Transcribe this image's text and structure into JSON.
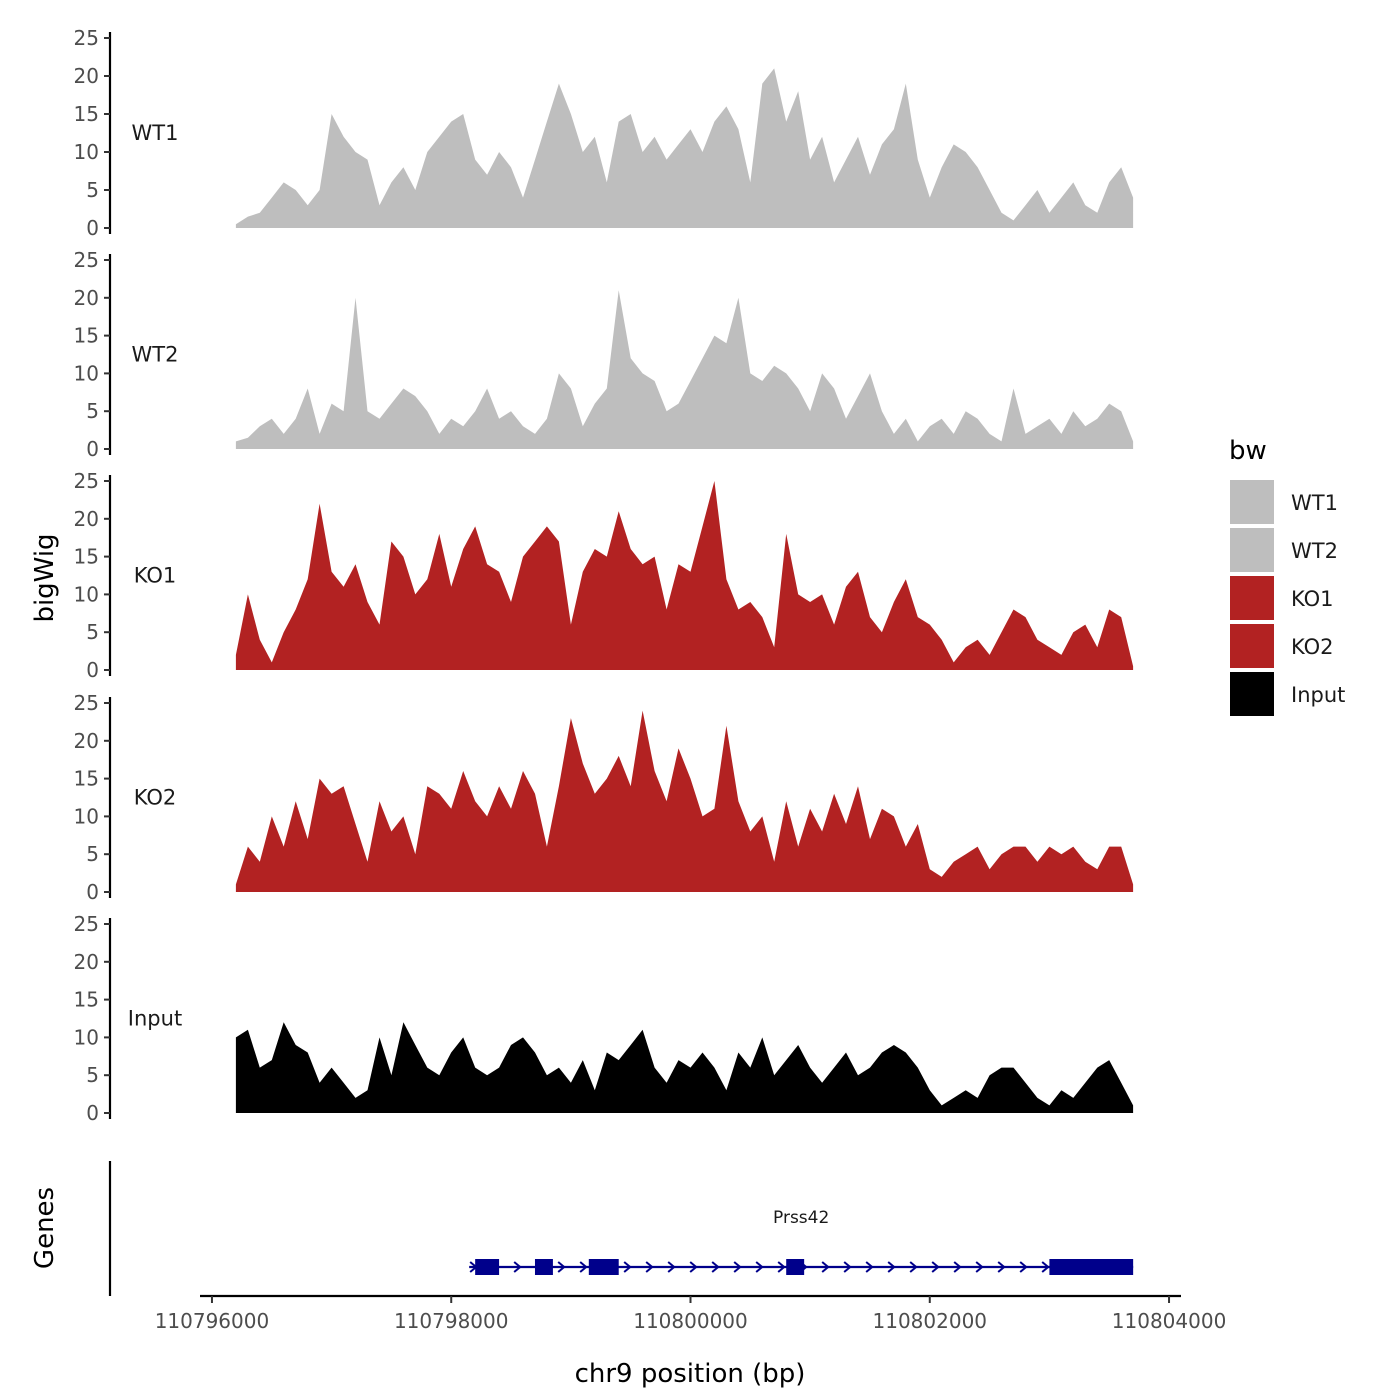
{
  "chart_data": {
    "type": "area",
    "title": "",
    "ylabel": "bigWig",
    "xlabel": "chr9 position (bp)",
    "gene_panel_label": "Genes",
    "xlim": [
      110795900,
      110804100
    ],
    "ylim": [
      0,
      25
    ],
    "y_ticks": [
      0,
      5,
      10,
      15,
      20,
      25
    ],
    "y_tick_labels": [
      "0",
      "5",
      "10",
      "15",
      "20",
      "25"
    ],
    "x_ticks": [
      110796000,
      110798000,
      110800000,
      110802000,
      110804000
    ],
    "x_tick_labels": [
      "110796000",
      "110798000",
      "110800000",
      "110802000",
      "110804000"
    ],
    "legend": {
      "title": "bw",
      "placement": "right",
      "items": [
        {
          "label": "WT1",
          "color": "#bebebe"
        },
        {
          "label": "WT2",
          "color": "#bebebe"
        },
        {
          "label": "KO1",
          "color": "#b22222"
        },
        {
          "label": "KO2",
          "color": "#b22222"
        },
        {
          "label": "Input",
          "color": "#000000"
        }
      ]
    },
    "series": [
      {
        "name": "WT1",
        "color": "#bebebe",
        "x": [
          110796200,
          110796300,
          110796400,
          110796500,
          110796600,
          110796700,
          110796800,
          110796900,
          110797000,
          110797100,
          110797200,
          110797300,
          110797400,
          110797500,
          110797600,
          110797700,
          110797800,
          110797900,
          110798000,
          110798100,
          110798200,
          110798300,
          110798400,
          110798500,
          110798600,
          110798700,
          110798800,
          110798900,
          110799000,
          110799100,
          110799200,
          110799300,
          110799400,
          110799500,
          110799600,
          110799700,
          110799800,
          110799900,
          110800000,
          110800100,
          110800200,
          110800300,
          110800400,
          110800500,
          110800600,
          110800700,
          110800800,
          110800900,
          110801000,
          110801100,
          110801200,
          110801300,
          110801400,
          110801500,
          110801600,
          110801700,
          110801800,
          110801900,
          110802000,
          110802100,
          110802200,
          110802300,
          110802400,
          110802500,
          110802600,
          110802700,
          110802800,
          110802900,
          110803000,
          110803100,
          110803200,
          110803300,
          110803400,
          110803500,
          110803600,
          110803700
        ],
        "values": [
          0.5,
          1.5,
          2,
          4,
          6,
          5,
          3,
          5,
          15,
          12,
          10,
          9,
          3,
          6,
          8,
          5,
          10,
          12,
          14,
          15,
          9,
          7,
          10,
          8,
          4,
          9,
          14,
          19,
          15,
          10,
          12,
          6,
          14,
          15,
          10,
          12,
          9,
          11,
          13,
          10,
          14,
          16,
          13,
          6,
          19,
          21,
          14,
          18,
          9,
          12,
          6,
          9,
          12,
          7,
          11,
          13,
          19,
          9,
          4,
          8,
          11,
          10,
          8,
          5,
          2,
          1,
          3,
          5,
          2,
          4,
          6,
          3,
          2,
          6,
          8,
          4
        ]
      },
      {
        "name": "WT2",
        "color": "#bebebe",
        "x": [
          110796200,
          110796300,
          110796400,
          110796500,
          110796600,
          110796700,
          110796800,
          110796900,
          110797000,
          110797100,
          110797200,
          110797300,
          110797400,
          110797500,
          110797600,
          110797700,
          110797800,
          110797900,
          110798000,
          110798100,
          110798200,
          110798300,
          110798400,
          110798500,
          110798600,
          110798700,
          110798800,
          110798900,
          110799000,
          110799100,
          110799200,
          110799300,
          110799400,
          110799500,
          110799600,
          110799700,
          110799800,
          110799900,
          110800000,
          110800100,
          110800200,
          110800300,
          110800400,
          110800500,
          110800600,
          110800700,
          110800800,
          110800900,
          110801000,
          110801100,
          110801200,
          110801300,
          110801400,
          110801500,
          110801600,
          110801700,
          110801800,
          110801900,
          110802000,
          110802100,
          110802200,
          110802300,
          110802400,
          110802500,
          110802600,
          110802700,
          110802800,
          110802900,
          110803000,
          110803100,
          110803200,
          110803300,
          110803400,
          110803500,
          110803600,
          110803700
        ],
        "values": [
          1,
          1.5,
          3,
          4,
          2,
          4,
          8,
          2,
          6,
          5,
          20,
          5,
          4,
          6,
          8,
          7,
          5,
          2,
          4,
          3,
          5,
          8,
          4,
          5,
          3,
          2,
          4,
          10,
          8,
          3,
          6,
          8,
          21,
          12,
          10,
          9,
          5,
          6,
          9,
          12,
          15,
          14,
          20,
          10,
          9,
          11,
          10,
          8,
          5,
          10,
          8,
          4,
          7,
          10,
          5,
          2,
          4,
          1,
          3,
          4,
          2,
          5,
          4,
          2,
          1,
          8,
          2,
          3,
          4,
          2,
          5,
          3,
          4,
          6,
          5,
          1
        ]
      },
      {
        "name": "KO1",
        "color": "#b22222",
        "x": [
          110796200,
          110796300,
          110796400,
          110796500,
          110796600,
          110796700,
          110796800,
          110796900,
          110797000,
          110797100,
          110797200,
          110797300,
          110797400,
          110797500,
          110797600,
          110797700,
          110797800,
          110797900,
          110798000,
          110798100,
          110798200,
          110798300,
          110798400,
          110798500,
          110798600,
          110798700,
          110798800,
          110798900,
          110799000,
          110799100,
          110799200,
          110799300,
          110799400,
          110799500,
          110799600,
          110799700,
          110799800,
          110799900,
          110800000,
          110800100,
          110800200,
          110800300,
          110800400,
          110800500,
          110800600,
          110800700,
          110800800,
          110800900,
          110801000,
          110801100,
          110801200,
          110801300,
          110801400,
          110801500,
          110801600,
          110801700,
          110801800,
          110801900,
          110802000,
          110802100,
          110802200,
          110802300,
          110802400,
          110802500,
          110802600,
          110802700,
          110802800,
          110802900,
          110803000,
          110803100,
          110803200,
          110803300,
          110803400,
          110803500,
          110803600,
          110803700
        ],
        "values": [
          2,
          10,
          4,
          1,
          5,
          8,
          12,
          22,
          13,
          11,
          14,
          9,
          6,
          17,
          15,
          10,
          12,
          18,
          11,
          16,
          19,
          14,
          13,
          9,
          15,
          17,
          19,
          17,
          6,
          13,
          16,
          15,
          21,
          16,
          14,
          15,
          8,
          14,
          13,
          19,
          25,
          12,
          8,
          9,
          7,
          3,
          18,
          10,
          9,
          10,
          6,
          11,
          13,
          7,
          5,
          9,
          12,
          7,
          6,
          4,
          1,
          3,
          4,
          2,
          5,
          8,
          7,
          4,
          3,
          2,
          5,
          6,
          3,
          8,
          7,
          0.5
        ]
      },
      {
        "name": "KO2",
        "color": "#b22222",
        "x": [
          110796200,
          110796300,
          110796400,
          110796500,
          110796600,
          110796700,
          110796800,
          110796900,
          110797000,
          110797100,
          110797200,
          110797300,
          110797400,
          110797500,
          110797600,
          110797700,
          110797800,
          110797900,
          110798000,
          110798100,
          110798200,
          110798300,
          110798400,
          110798500,
          110798600,
          110798700,
          110798800,
          110798900,
          110799000,
          110799100,
          110799200,
          110799300,
          110799400,
          110799500,
          110799600,
          110799700,
          110799800,
          110799900,
          110800000,
          110800100,
          110800200,
          110800300,
          110800400,
          110800500,
          110800600,
          110800700,
          110800800,
          110800900,
          110801000,
          110801100,
          110801200,
          110801300,
          110801400,
          110801500,
          110801600,
          110801700,
          110801800,
          110801900,
          110802000,
          110802100,
          110802200,
          110802300,
          110802400,
          110802500,
          110802600,
          110802700,
          110802800,
          110802900,
          110803000,
          110803100,
          110803200,
          110803300,
          110803400,
          110803500,
          110803600,
          110803700
        ],
        "values": [
          1,
          6,
          4,
          10,
          6,
          12,
          7,
          15,
          13,
          14,
          9,
          4,
          12,
          8,
          10,
          5,
          14,
          13,
          11,
          16,
          12,
          10,
          14,
          11,
          16,
          13,
          6,
          14,
          23,
          17,
          13,
          15,
          18,
          14,
          24,
          16,
          12,
          19,
          15,
          10,
          11,
          22,
          12,
          8,
          10,
          4,
          12,
          6,
          11,
          8,
          13,
          9,
          14,
          7,
          11,
          10,
          6,
          9,
          3,
          2,
          4,
          5,
          6,
          3,
          5,
          6,
          6,
          4,
          6,
          5,
          6,
          4,
          3,
          6,
          6,
          1
        ]
      },
      {
        "name": "Input",
        "color": "#000000",
        "x": [
          110796200,
          110796300,
          110796400,
          110796500,
          110796600,
          110796700,
          110796800,
          110796900,
          110797000,
          110797100,
          110797200,
          110797300,
          110797400,
          110797500,
          110797600,
          110797700,
          110797800,
          110797900,
          110798000,
          110798100,
          110798200,
          110798300,
          110798400,
          110798500,
          110798600,
          110798700,
          110798800,
          110798900,
          110799000,
          110799100,
          110799200,
          110799300,
          110799400,
          110799500,
          110799600,
          110799700,
          110799800,
          110799900,
          110800000,
          110800100,
          110800200,
          110800300,
          110800400,
          110800500,
          110800600,
          110800700,
          110800800,
          110800900,
          110801000,
          110801100,
          110801200,
          110801300,
          110801400,
          110801500,
          110801600,
          110801700,
          110801800,
          110801900,
          110802000,
          110802100,
          110802200,
          110802300,
          110802400,
          110802500,
          110802600,
          110802700,
          110802800,
          110802900,
          110803000,
          110803100,
          110803200,
          110803300,
          110803400,
          110803500,
          110803600,
          110803700
        ],
        "values": [
          10,
          11,
          6,
          7,
          12,
          9,
          8,
          4,
          6,
          4,
          2,
          3,
          10,
          5,
          12,
          9,
          6,
          5,
          8,
          10,
          6,
          5,
          6,
          9,
          10,
          8,
          5,
          6,
          4,
          7,
          3,
          8,
          7,
          9,
          11,
          6,
          4,
          7,
          6,
          8,
          6,
          3,
          8,
          6,
          10,
          5,
          7,
          9,
          6,
          4,
          6,
          8,
          5,
          6,
          8,
          9,
          8,
          6,
          3,
          1,
          2,
          3,
          2,
          5,
          6,
          6,
          4,
          2,
          1,
          3,
          2,
          4,
          6,
          7,
          4,
          1
        ]
      }
    ],
    "genes": [
      {
        "name": "Prss42",
        "strand": "+",
        "start": 110798150,
        "end": 110803700,
        "exons": [
          [
            110798200,
            110798400
          ],
          [
            110798700,
            110798850
          ],
          [
            110799150,
            110799400
          ],
          [
            110800800,
            110800950
          ],
          [
            110803000,
            110803700
          ]
        ]
      }
    ]
  }
}
